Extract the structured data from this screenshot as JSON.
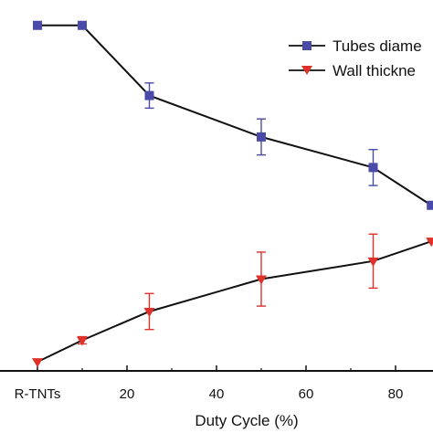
{
  "chart_data": {
    "type": "line",
    "xlabel": "Duty Cycle (%)",
    "x_ticks": [
      {
        "x": 0,
        "label": "R-TNTs"
      },
      {
        "x": 20,
        "label": "20"
      },
      {
        "x": 40,
        "label": "40"
      },
      {
        "x": 60,
        "label": "60"
      },
      {
        "x": 80,
        "label": "80"
      }
    ],
    "xlim": [
      -8,
      88
    ],
    "ylim": [
      0,
      1
    ],
    "y_axis_labels_visible": false,
    "legend_position": "top-right",
    "series": [
      {
        "name": "Tubes diame",
        "marker": "square",
        "color": "#4a4aa8",
        "x": [
          0,
          10,
          25,
          50,
          75,
          88
        ],
        "y": [
          0.96,
          0.96,
          0.765,
          0.65,
          0.565,
          0.46
        ],
        "error": [
          0,
          0,
          0.035,
          0.05,
          0.05,
          0
        ]
      },
      {
        "name": "Wall thickne",
        "marker": "triangle-down",
        "color": "#e0302a",
        "x": [
          0,
          10,
          25,
          50,
          75,
          88
        ],
        "y": [
          0.025,
          0.085,
          0.165,
          0.255,
          0.305,
          0.36
        ],
        "error": [
          0,
          0.01,
          0.05,
          0.075,
          0.075,
          0
        ]
      }
    ]
  }
}
